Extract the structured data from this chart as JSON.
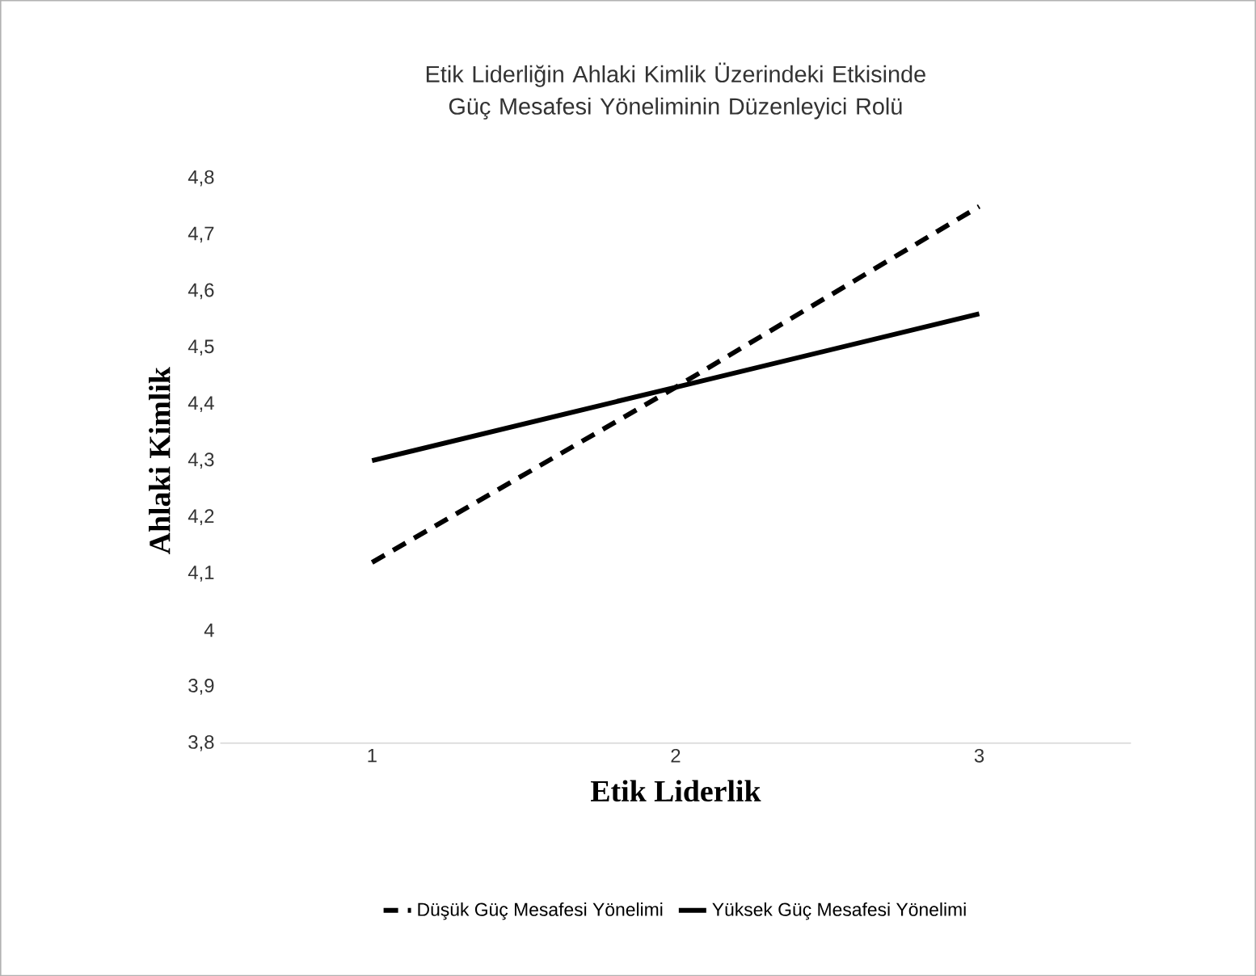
{
  "chart_data": {
    "type": "line",
    "title": "Etik Liderliğin Ahlaki Kimlik Üzerindeki Etkisinde Güç Mesafesi Yöneliminin Düzenleyici Rolü",
    "xlabel": "Etik Liderlik",
    "ylabel": "Ahlaki Kimlik",
    "categories": [
      "1",
      "2",
      "3"
    ],
    "series": [
      {
        "name": "Düşük Güç Mesafesi Yönelimi",
        "color": "#000000",
        "line_style": "dashed",
        "values": [
          4.12,
          4.43,
          4.75
        ]
      },
      {
        "name": "Yüksek Güç Mesafesi Yönelimi",
        "color": "#000000",
        "line_style": "solid",
        "values": [
          4.3,
          4.43,
          4.56
        ]
      }
    ],
    "ylim": [
      3.8,
      4.8
    ],
    "yticks": [
      {
        "value": 3.8,
        "label": "3,8"
      },
      {
        "value": 3.9,
        "label": "3,9"
      },
      {
        "value": 4,
        "label": "4"
      },
      {
        "value": 4.1,
        "label": "4,1"
      },
      {
        "value": 4.2,
        "label": "4,2"
      },
      {
        "value": 4.3,
        "label": "4,3"
      },
      {
        "value": 4.4,
        "label": "4,4"
      },
      {
        "value": 4.5,
        "label": "4,5"
      },
      {
        "value": 4.6,
        "label": "4,6"
      },
      {
        "value": 4.7,
        "label": "4,7"
      },
      {
        "value": 4.8,
        "label": "4,8"
      }
    ],
    "grid": false,
    "legend": "bottom",
    "marker": "none"
  }
}
